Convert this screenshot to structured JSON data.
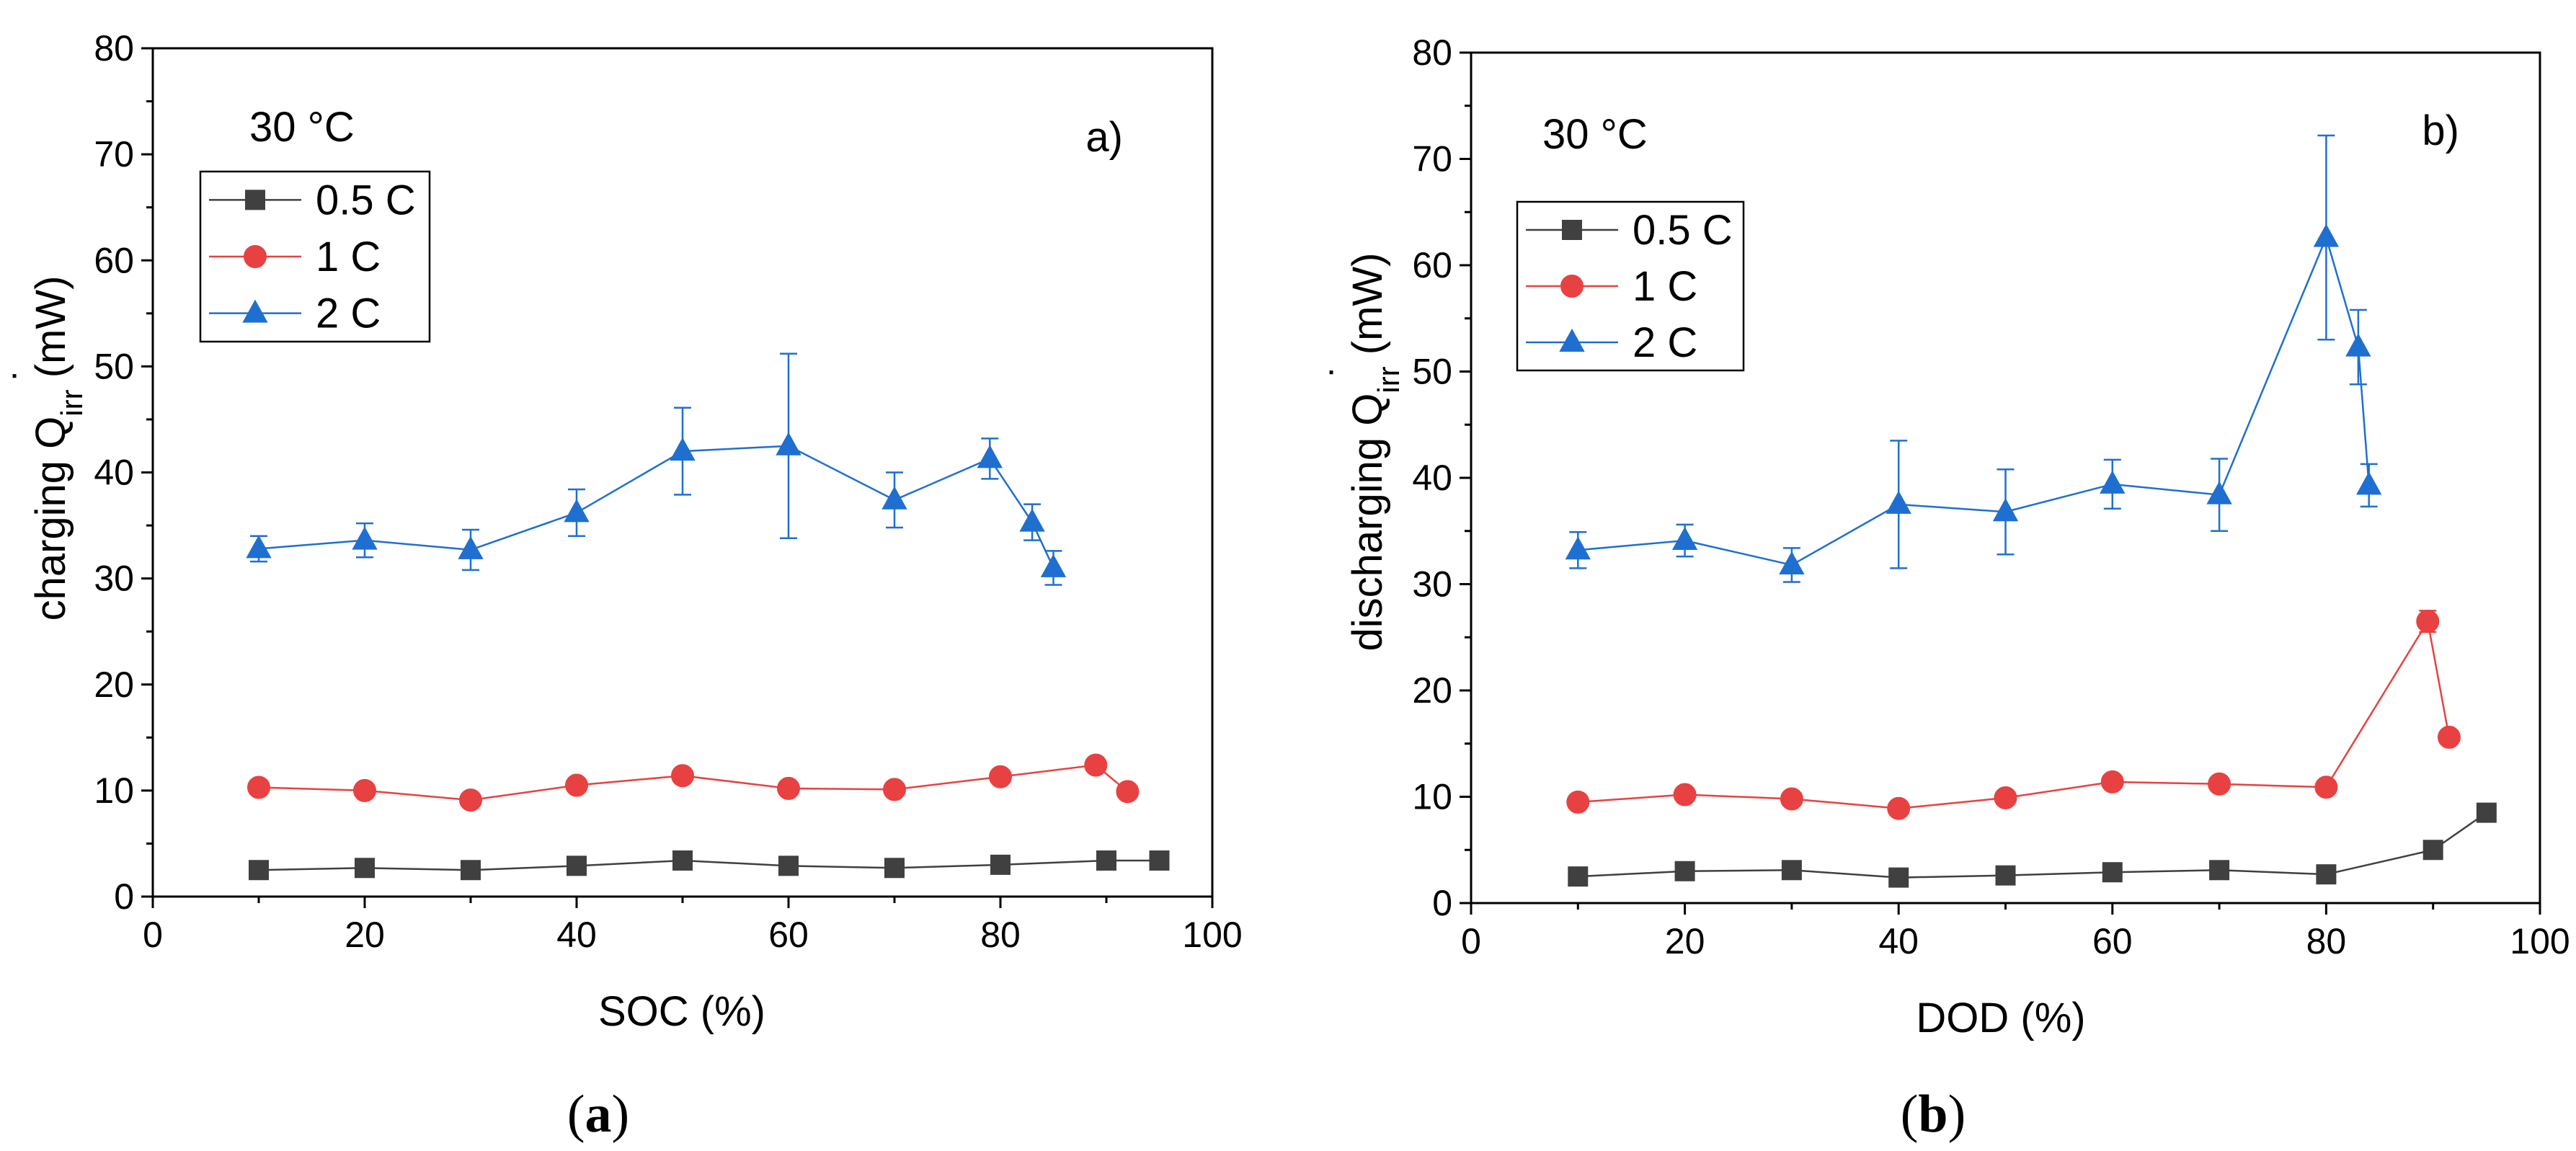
{
  "chart_data": [
    {
      "type": "line",
      "panel_label": "a)",
      "condition": "30 °C",
      "xlabel": "SOC (%)",
      "ylabel": "charging Q̇irr (mW)",
      "ylabel_main": "charging Q",
      "ylabel_dot": "˙",
      "ylabel_sub": "irr",
      "ylabel_unit": " (mW)",
      "xlim": [
        0,
        100
      ],
      "ylim": [
        0,
        80
      ],
      "xticks": [
        "0",
        "20",
        "40",
        "60",
        "80",
        "100"
      ],
      "yticks": [
        "0",
        "10",
        "20",
        "30",
        "40",
        "50",
        "60",
        "70",
        "80"
      ],
      "legend_position": "upper-left",
      "series": [
        {
          "name": "0.5 C",
          "color": "#404040",
          "marker": "square",
          "x": [
            10,
            20,
            30,
            40,
            50,
            60,
            70,
            80,
            90,
            95
          ],
          "y": [
            2.5,
            2.7,
            2.5,
            2.9,
            3.4,
            2.9,
            2.7,
            3.0,
            3.4,
            3.4
          ],
          "err": [
            0,
            0,
            0,
            0,
            0,
            0,
            0,
            0,
            0,
            0
          ]
        },
        {
          "name": "1 C",
          "color": "#e84141",
          "marker": "circle",
          "x": [
            10,
            20,
            30,
            40,
            50,
            60,
            70,
            80,
            89,
            92
          ],
          "y": [
            10.3,
            10.0,
            9.1,
            10.5,
            11.4,
            10.2,
            10.1,
            11.3,
            12.4,
            9.9
          ],
          "err": [
            0,
            0,
            0,
            0,
            0,
            0,
            0,
            0,
            0,
            0
          ]
        },
        {
          "name": "2 C",
          "color": "#1f6fd1",
          "marker": "triangle",
          "x": [
            10,
            20,
            30,
            40,
            50,
            60,
            70,
            79,
            83,
            85
          ],
          "y": [
            32.8,
            33.6,
            32.7,
            36.2,
            42.0,
            42.5,
            37.4,
            41.3,
            35.3,
            31.0
          ],
          "err": [
            1.2,
            1.6,
            1.9,
            2.2,
            4.1,
            8.7,
            2.6,
            1.9,
            1.7,
            1.6
          ]
        }
      ]
    },
    {
      "type": "line",
      "panel_label": "b)",
      "condition": "30 °C",
      "xlabel": "DOD (%)",
      "ylabel": "discharging Q̇irr (mW)",
      "ylabel_main": "discharging Q",
      "ylabel_dot": "˙",
      "ylabel_sub": "irr",
      "ylabel_unit": " (mW)",
      "xlim": [
        0,
        100
      ],
      "ylim": [
        0,
        80
      ],
      "xticks": [
        "0",
        "20",
        "40",
        "60",
        "80",
        "100"
      ],
      "yticks": [
        "0",
        "10",
        "20",
        "30",
        "40",
        "50",
        "60",
        "70",
        "80"
      ],
      "legend_position": "upper-left",
      "series": [
        {
          "name": "0.5 C",
          "color": "#404040",
          "marker": "square",
          "x": [
            10,
            20,
            30,
            40,
            50,
            60,
            70,
            80,
            90,
            95
          ],
          "y": [
            2.5,
            3.0,
            3.1,
            2.4,
            2.6,
            2.9,
            3.1,
            2.7,
            5.0,
            8.5
          ],
          "err": [
            0,
            0,
            0,
            0,
            0,
            0,
            0,
            0,
            0,
            0
          ]
        },
        {
          "name": "1 C",
          "color": "#e84141",
          "marker": "circle",
          "x": [
            10,
            20,
            30,
            40,
            50,
            60,
            70,
            80,
            89.5,
            91.5
          ],
          "y": [
            9.5,
            10.2,
            9.8,
            8.9,
            9.9,
            11.4,
            11.2,
            10.9,
            26.5,
            15.6
          ],
          "err": [
            0,
            0,
            0,
            0,
            0,
            0,
            0,
            0,
            1.0,
            0
          ]
        },
        {
          "name": "2 C",
          "color": "#1f6fd1",
          "marker": "triangle",
          "x": [
            10,
            20,
            30,
            40,
            50,
            60,
            70,
            80,
            83,
            84
          ],
          "y": [
            33.2,
            34.1,
            31.8,
            37.5,
            36.8,
            39.4,
            38.4,
            62.6,
            52.3,
            39.3
          ],
          "err": [
            1.7,
            1.5,
            1.6,
            6.0,
            4.0,
            2.3,
            3.4,
            9.6,
            3.5,
            2.0
          ]
        }
      ]
    }
  ],
  "captions": [
    "(a)",
    "(b)"
  ]
}
